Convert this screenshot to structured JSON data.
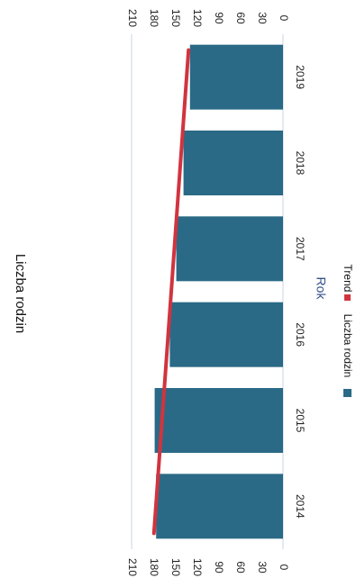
{
  "chart_data": {
    "type": "bar",
    "title": "Liczba rodzin",
    "xlabel": "Rok",
    "ylabel": "",
    "categories": [
      "2014",
      "2015",
      "2016",
      "2017",
      "2018",
      "2019"
    ],
    "series": [
      {
        "name": "Liczba rodzin",
        "type": "bar",
        "values": [
          176,
          178,
          157,
          148,
          138,
          129
        ]
      },
      {
        "name": "Trend",
        "type": "line",
        "values": [
          179,
          169,
          159,
          150,
          140,
          131
        ]
      }
    ],
    "ylim": [
      0,
      210
    ],
    "yticks": [
      "0",
      "30",
      "60",
      "90",
      "120",
      "150",
      "180",
      "210"
    ],
    "orientation": "rotated-90-clockwise",
    "colors": {
      "bar": "#2a6a86",
      "trend": "#d1343f",
      "axis_label": "#2f4f8a"
    },
    "legend_position": "bottom"
  }
}
